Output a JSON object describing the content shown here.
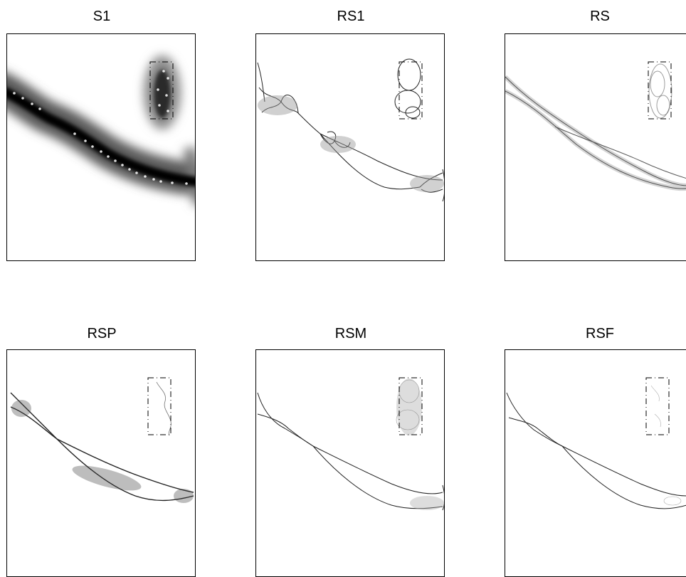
{
  "panels": [
    {
      "id": "s1",
      "title": "S1"
    },
    {
      "id": "rs1",
      "title": "RS1"
    },
    {
      "id": "rs",
      "title": "RS"
    },
    {
      "id": "rsp",
      "title": "RSP"
    },
    {
      "id": "rsm",
      "title": "RSM"
    },
    {
      "id": "rsf",
      "title": "RSF"
    }
  ]
}
